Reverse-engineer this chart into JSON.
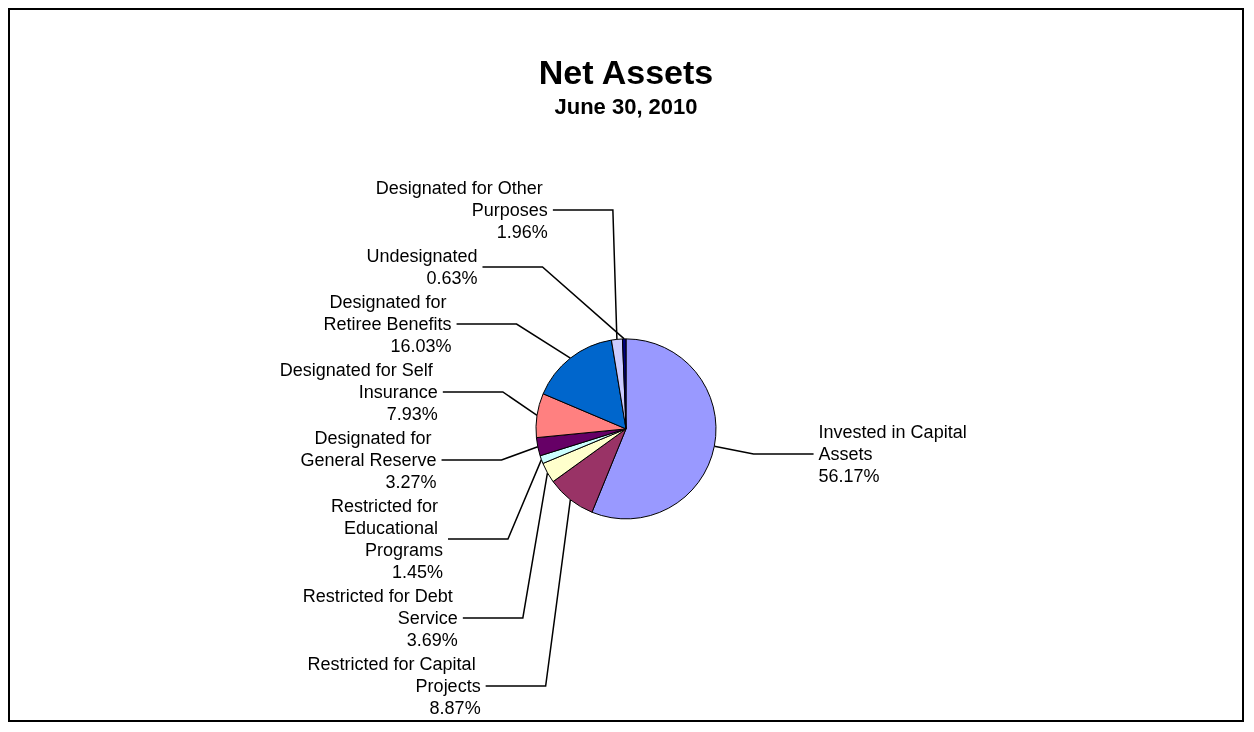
{
  "chart_data": {
    "type": "pie",
    "title": "Net Assets",
    "subtitle": "June 30, 2010",
    "categories": [
      "Invested in Capital Assets",
      "Restricted for Capital Projects",
      "Restricted for Debt Service",
      "Restricted for Educational Programs",
      "Designated for General Reserve",
      "Designated for Self Insurance",
      "Designated for Retiree Benefits",
      "Designated for Other Purposes",
      "Undesignated"
    ],
    "values": [
      56.17,
      8.87,
      3.69,
      1.45,
      3.27,
      7.93,
      16.03,
      1.96,
      0.63
    ],
    "value_labels": [
      "56.17%",
      "8.87%",
      "3.69%",
      "1.45%",
      "3.27%",
      "7.93%",
      "16.03%",
      "1.96%",
      "0.63%"
    ],
    "colors": [
      "#9999ff",
      "#993366",
      "#ffffcc",
      "#ccffff",
      "#660066",
      "#ff8080",
      "#0066cc",
      "#ccccff",
      "#000080"
    ],
    "legend": false
  }
}
